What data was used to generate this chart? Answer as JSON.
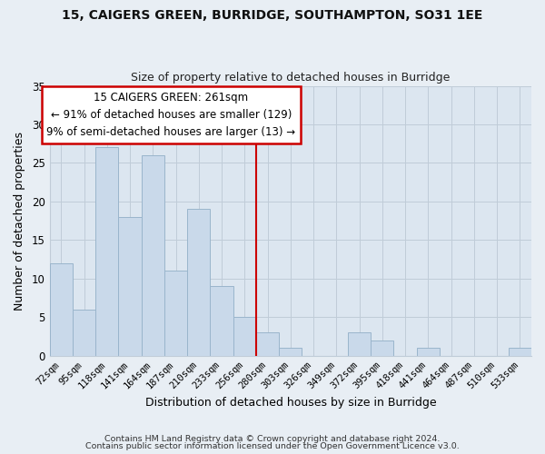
{
  "title1": "15, CAIGERS GREEN, BURRIDGE, SOUTHAMPTON, SO31 1EE",
  "title2": "Size of property relative to detached houses in Burridge",
  "xlabel": "Distribution of detached houses by size in Burridge",
  "ylabel": "Number of detached properties",
  "bar_labels": [
    "72sqm",
    "95sqm",
    "118sqm",
    "141sqm",
    "164sqm",
    "187sqm",
    "210sqm",
    "233sqm",
    "256sqm",
    "280sqm",
    "303sqm",
    "326sqm",
    "349sqm",
    "372sqm",
    "395sqm",
    "418sqm",
    "441sqm",
    "464sqm",
    "487sqm",
    "510sqm",
    "533sqm"
  ],
  "bar_values": [
    12,
    6,
    27,
    18,
    26,
    11,
    19,
    9,
    5,
    3,
    1,
    0,
    0,
    3,
    2,
    0,
    1,
    0,
    0,
    0,
    1
  ],
  "bar_color": "#c9d9ea",
  "bar_edge_color": "#9ab5cc",
  "reference_line_color": "#cc0000",
  "annotation_title": "15 CAIGERS GREEN: 261sqm",
  "annotation_line1": "← 91% of detached houses are smaller (129)",
  "annotation_line2": "9% of semi-detached houses are larger (13) →",
  "annotation_box_color": "#ffffff",
  "annotation_box_edge_color": "#cc0000",
  "ylim": [
    0,
    35
  ],
  "yticks": [
    0,
    5,
    10,
    15,
    20,
    25,
    30,
    35
  ],
  "footer1": "Contains HM Land Registry data © Crown copyright and database right 2024.",
  "footer2": "Contains public sector information licensed under the Open Government Licence v3.0.",
  "background_color": "#e8eef4",
  "plot_background_color": "#dce6f0",
  "grid_color": "#c0ccd8"
}
